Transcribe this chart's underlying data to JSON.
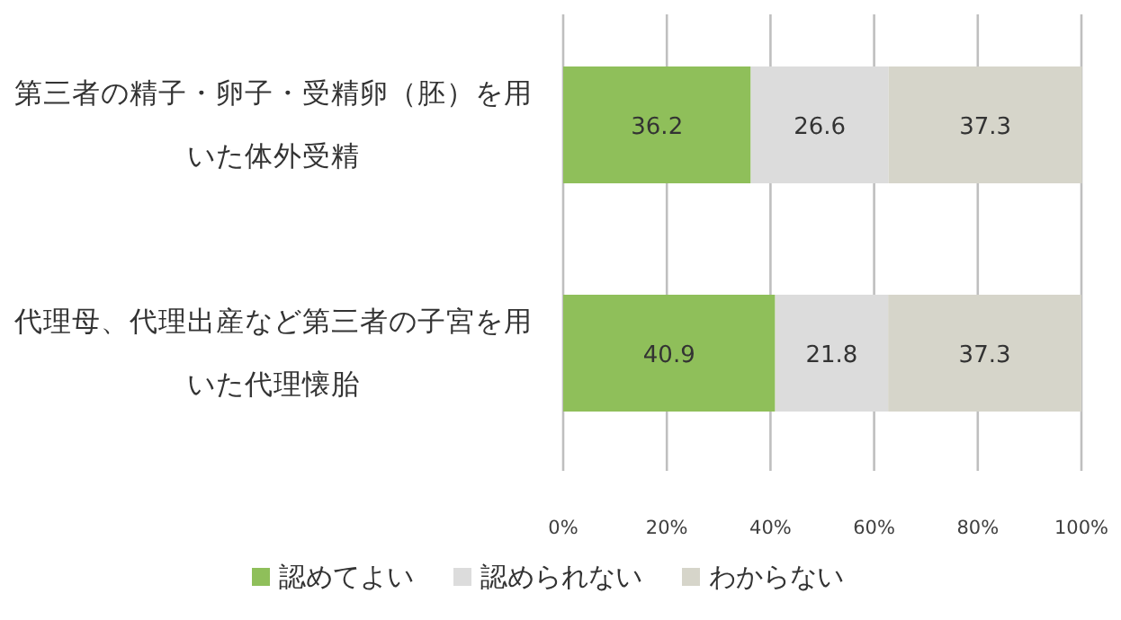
{
  "chart_data": {
    "type": "bar",
    "orientation": "horizontal",
    "stacked": true,
    "data_labels": true,
    "grid": "x",
    "legend": "bottom",
    "categories": [
      "第三者の精子・卵子・受精卵（胚）を用いた体外受精",
      "代理母、代理出産など第三者の子宮を用いた代理懐胎"
    ],
    "series": [
      {
        "name": "認めてよい",
        "color": "#8fbf5a",
        "values": [
          36.2,
          40.9
        ]
      },
      {
        "name": "認められない",
        "color": "#dcdcdc",
        "values": [
          26.6,
          21.8
        ]
      },
      {
        "name": "わからない",
        "color": "#d6d5ca",
        "values": [
          37.3,
          37.3
        ]
      }
    ],
    "xlim": [
      0,
      100
    ],
    "xticks": [
      {
        "value": 0,
        "label": "0%"
      },
      {
        "value": 20,
        "label": "20%"
      },
      {
        "value": 40,
        "label": "40%"
      },
      {
        "value": 60,
        "label": "60%"
      },
      {
        "value": 80,
        "label": "80%"
      },
      {
        "value": 100,
        "label": "100%"
      }
    ]
  }
}
